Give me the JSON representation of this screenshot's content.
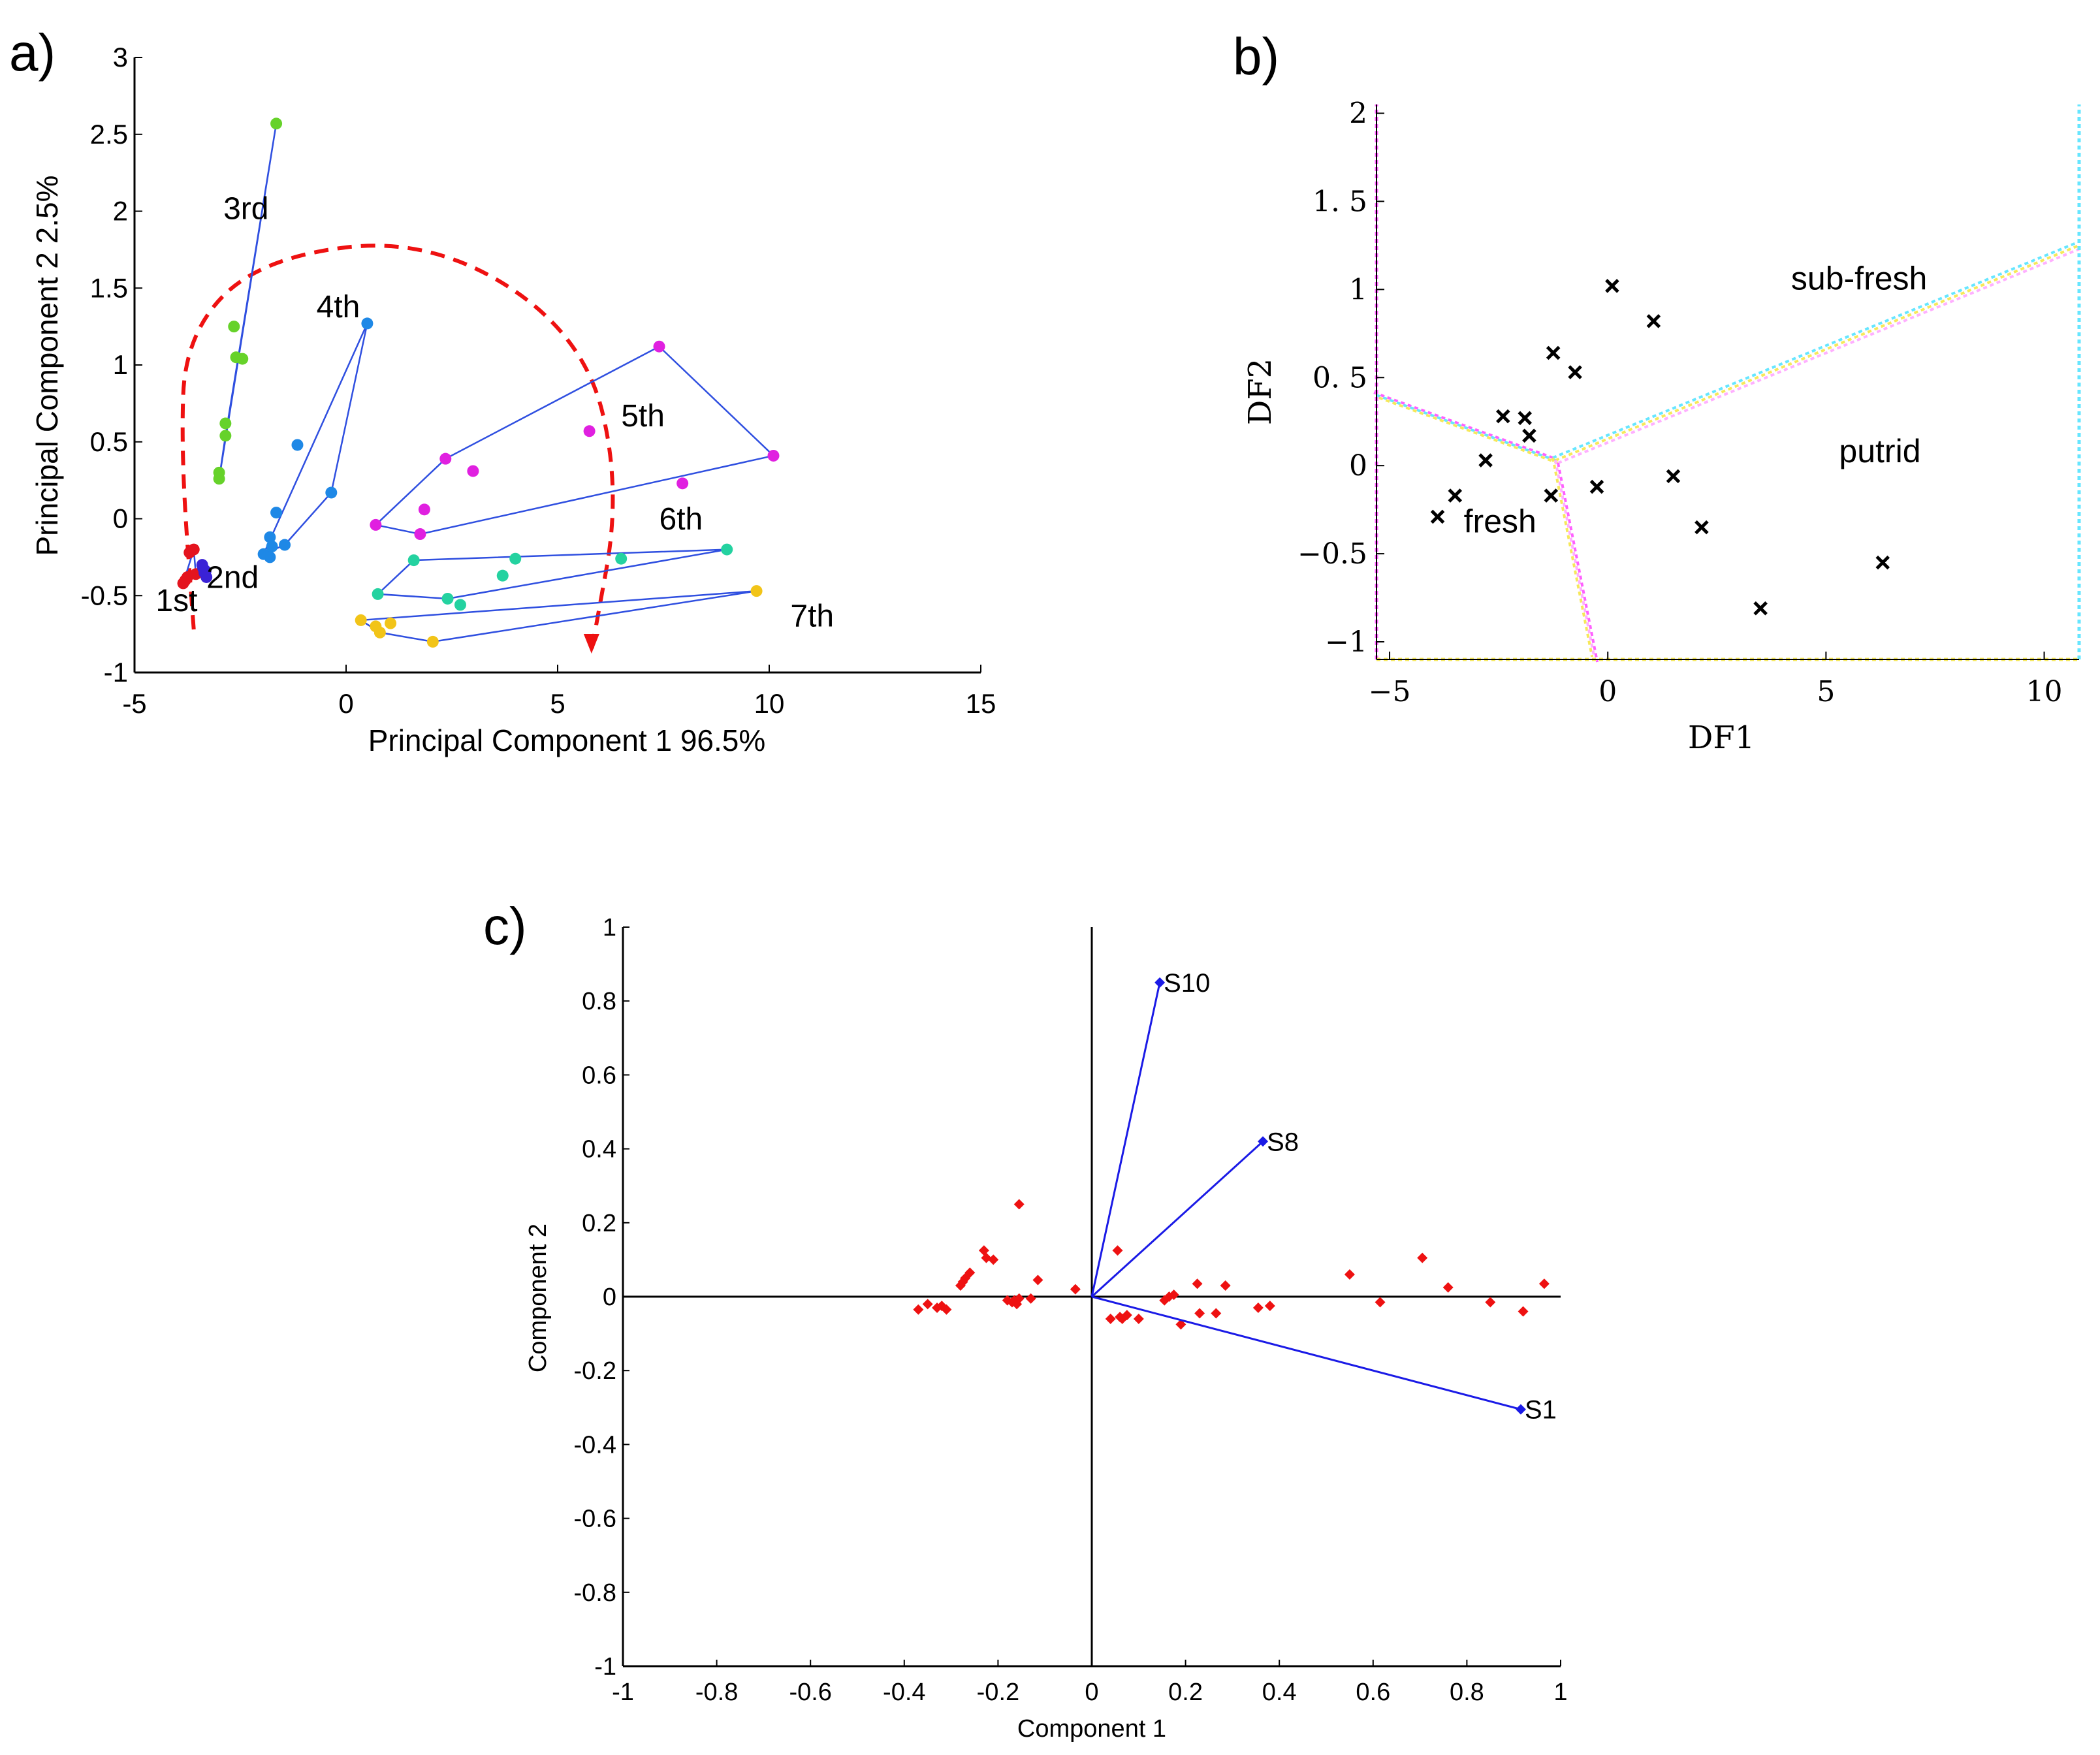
{
  "colors": {
    "axis": "#000000",
    "hull": "#2f4fe0",
    "trend_arrow": "#ee1111",
    "red": "#ee1111",
    "blue_vector": "#1a1ae6",
    "groups": {
      "1st": "#e4141e",
      "2nd": "#3a22d6",
      "3rd": "#66d22a",
      "4th": "#1e88e6",
      "5th": "#e020e0",
      "6th": "#24d2a0",
      "7th": "#f2c418"
    }
  },
  "chart_data": [
    {
      "panel": "a)",
      "type": "scatter",
      "xlabel": "Principal Component 1 96.5%",
      "ylabel": "Principal Component 2  2.5%",
      "xlim": [
        -5,
        15
      ],
      "ylim": [
        -1,
        3
      ],
      "xticks": [
        -5,
        0,
        5,
        10,
        15
      ],
      "yticks": [
        -1,
        -0.5,
        0,
        0.5,
        1,
        1.5,
        2,
        2.5,
        3
      ],
      "xtick_labels": [
        "-5",
        "0",
        "5",
        "10",
        "15"
      ],
      "ytick_labels": [
        "-1",
        "-0.5",
        "0",
        "0.5",
        "1",
        "1.5",
        "2",
        "2.5",
        "3"
      ],
      "trend": [
        [
          -3.6,
          -0.72
        ],
        [
          -3.9,
          0.4
        ],
        [
          -3.8,
          1.2
        ],
        [
          -2.0,
          1.7
        ],
        [
          2.0,
          1.83
        ],
        [
          5.6,
          1.2
        ],
        [
          6.5,
          0.2
        ],
        [
          5.8,
          -0.86
        ]
      ],
      "series": [
        {
          "name": "1st",
          "label_at": [
            -4.5,
            -0.6
          ],
          "points": [
            [
              -3.85,
              -0.42
            ],
            [
              -3.75,
              -0.38
            ],
            [
              -3.7,
              -0.22
            ],
            [
              -3.6,
              -0.2
            ],
            [
              -3.55,
              -0.36
            ],
            [
              -3.8,
              -0.4
            ]
          ],
          "hull": [
            [
              -3.85,
              -0.42
            ],
            [
              -3.6,
              -0.2
            ],
            [
              -3.55,
              -0.36
            ]
          ]
        },
        {
          "name": "2nd",
          "label_at": [
            -3.3,
            -0.45
          ],
          "points": [
            [
              -3.4,
              -0.3
            ],
            [
              -3.35,
              -0.35
            ],
            [
              -3.3,
              -0.38
            ],
            [
              -3.38,
              -0.32
            ],
            [
              -3.32,
              -0.34
            ]
          ],
          "hull": [
            [
              -3.4,
              -0.3
            ],
            [
              -3.3,
              -0.38
            ],
            [
              -3.35,
              -0.35
            ]
          ]
        },
        {
          "name": "3rd",
          "label_at": [
            -2.9,
            1.95
          ],
          "points": [
            [
              -1.65,
              2.57
            ],
            [
              -2.65,
              1.25
            ],
            [
              -2.6,
              1.05
            ],
            [
              -2.45,
              1.04
            ],
            [
              -2.85,
              0.62
            ],
            [
              -2.85,
              0.54
            ],
            [
              -3.0,
              0.3
            ],
            [
              -3.0,
              0.26
            ]
          ],
          "hull": [
            [
              -1.65,
              2.57
            ],
            [
              -3.0,
              0.26
            ],
            [
              -2.85,
              0.54
            ]
          ]
        },
        {
          "name": "4th",
          "label_at": [
            -0.7,
            1.31
          ],
          "points": [
            [
              0.5,
              1.27
            ],
            [
              -1.15,
              0.48
            ],
            [
              -0.35,
              0.17
            ],
            [
              -1.65,
              0.04
            ],
            [
              -1.8,
              -0.12
            ],
            [
              -1.75,
              -0.18
            ],
            [
              -1.45,
              -0.17
            ],
            [
              -1.95,
              -0.23
            ],
            [
              -1.8,
              -0.25
            ]
          ],
          "hull": [
            [
              0.5,
              1.27
            ],
            [
              -1.95,
              -0.23
            ],
            [
              -1.45,
              -0.17
            ],
            [
              -0.35,
              0.17
            ]
          ]
        },
        {
          "name": "5th",
          "label_at": [
            6.5,
            0.6
          ],
          "points": [
            [
              7.4,
              1.12
            ],
            [
              10.1,
              0.41
            ],
            [
              5.75,
              0.57
            ],
            [
              2.35,
              0.39
            ],
            [
              3.0,
              0.31
            ],
            [
              7.95,
              0.23
            ],
            [
              1.85,
              0.06
            ],
            [
              0.7,
              -0.04
            ],
            [
              1.75,
              -0.1
            ]
          ],
          "hull": [
            [
              7.4,
              1.12
            ],
            [
              10.1,
              0.41
            ],
            [
              1.75,
              -0.1
            ],
            [
              0.7,
              -0.04
            ],
            [
              2.35,
              0.39
            ]
          ]
        },
        {
          "name": "6th",
          "label_at": [
            7.4,
            -0.07
          ],
          "points": [
            [
              9.0,
              -0.2
            ],
            [
              6.5,
              -0.26
            ],
            [
              4.0,
              -0.26
            ],
            [
              1.6,
              -0.27
            ],
            [
              3.7,
              -0.37
            ],
            [
              0.75,
              -0.49
            ],
            [
              2.4,
              -0.52
            ],
            [
              2.7,
              -0.56
            ]
          ],
          "hull": [
            [
              9.0,
              -0.2
            ],
            [
              1.6,
              -0.27
            ],
            [
              0.75,
              -0.49
            ],
            [
              2.4,
              -0.52
            ]
          ]
        },
        {
          "name": "7th",
          "label_at": [
            10.5,
            -0.7
          ],
          "points": [
            [
              9.7,
              -0.47
            ],
            [
              0.35,
              -0.66
            ],
            [
              0.7,
              -0.7
            ],
            [
              1.05,
              -0.68
            ],
            [
              0.8,
              -0.74
            ],
            [
              2.05,
              -0.8
            ]
          ],
          "hull": [
            [
              9.7,
              -0.47
            ],
            [
              0.35,
              -0.66
            ],
            [
              0.8,
              -0.74
            ],
            [
              2.05,
              -0.8
            ]
          ]
        }
      ]
    },
    {
      "panel": "b)",
      "type": "scatter",
      "xlabel": "DF1",
      "ylabel": "DF2",
      "xlim": [
        -5.3,
        10.8
      ],
      "ylim": [
        -1.1,
        2.05
      ],
      "xticks": [
        -5,
        0,
        5,
        10
      ],
      "yticks": [
        -1,
        -0.5,
        0,
        0.5,
        1,
        1.5,
        2
      ],
      "xtick_labels": [
        "−5",
        "0",
        "5",
        "10"
      ],
      "ytick_labels": [
        "−1",
        "−0.5",
        "0",
        "0. 5",
        "1",
        "1. 5",
        "2"
      ],
      "class_labels": [
        {
          "text": "fresh",
          "x": -3.3,
          "y": -0.38
        },
        {
          "text": "sub-fresh",
          "x": 4.2,
          "y": 1.0
        },
        {
          "text": "putrid",
          "x": 5.3,
          "y": 0.02
        }
      ],
      "boundaries": [
        {
          "name": "fresh / sub-fresh",
          "points": [
            [
              -5.3,
              0.4
            ],
            [
              -1.2,
              0.03
            ]
          ]
        },
        {
          "name": "sub-fresh / putrid",
          "points": [
            [
              -1.2,
              0.03
            ],
            [
              10.8,
              1.25
            ]
          ]
        },
        {
          "name": "fresh / putrid",
          "points": [
            [
              -1.2,
              0.03
            ],
            [
              -0.3,
              -1.1
            ]
          ]
        }
      ],
      "points": [
        [
          0.1,
          1.02
        ],
        [
          1.05,
          0.82
        ],
        [
          -1.25,
          0.64
        ],
        [
          -0.75,
          0.53
        ],
        [
          -2.4,
          0.28
        ],
        [
          -1.9,
          0.27
        ],
        [
          -1.8,
          0.17
        ],
        [
          -2.8,
          0.03
        ],
        [
          -1.3,
          -0.17
        ],
        [
          -0.25,
          -0.12
        ],
        [
          1.5,
          -0.06
        ],
        [
          -3.5,
          -0.17
        ],
        [
          -3.9,
          -0.29
        ],
        [
          2.15,
          -0.35
        ],
        [
          6.3,
          -0.55
        ],
        [
          3.5,
          -0.81
        ]
      ]
    },
    {
      "panel": "c)",
      "type": "scatter",
      "xlabel": "Component 1",
      "ylabel": "Component 2",
      "xlim": [
        -1,
        1
      ],
      "ylim": [
        -1,
        1
      ],
      "xticks": [
        -1,
        -0.8,
        -0.6,
        -0.4,
        -0.2,
        0,
        0.2,
        0.4,
        0.6,
        0.8,
        1
      ],
      "yticks": [
        -1,
        -0.8,
        -0.6,
        -0.4,
        -0.2,
        0,
        0.2,
        0.4,
        0.6,
        0.8,
        1
      ],
      "xtick_labels": [
        "-1",
        "-0.8",
        "-0.6",
        "-0.4",
        "-0.2",
        "0",
        "0.2",
        "0.4",
        "0.6",
        "0.8",
        "1"
      ],
      "ytick_labels": [
        "-1",
        "-0.8",
        "-0.6",
        "-0.4",
        "-0.2",
        "0",
        "0.2",
        "0.4",
        "0.6",
        "0.8",
        "1"
      ],
      "vectors": [
        {
          "name": "S10",
          "x": 0.145,
          "y": 0.85
        },
        {
          "name": "S8",
          "x": 0.365,
          "y": 0.42
        },
        {
          "name": "S1",
          "x": 0.915,
          "y": -0.305
        }
      ],
      "points": [
        [
          -0.37,
          -0.035
        ],
        [
          -0.35,
          -0.02
        ],
        [
          -0.33,
          -0.03
        ],
        [
          -0.32,
          -0.025
        ],
        [
          -0.31,
          -0.035
        ],
        [
          -0.275,
          0.04
        ],
        [
          -0.27,
          0.05
        ],
        [
          -0.26,
          0.065
        ],
        [
          -0.28,
          0.03
        ],
        [
          -0.23,
          0.125
        ],
        [
          -0.225,
          0.105
        ],
        [
          -0.21,
          0.1
        ],
        [
          -0.155,
          0.25
        ],
        [
          -0.18,
          -0.01
        ],
        [
          -0.17,
          -0.015
        ],
        [
          -0.165,
          -0.01
        ],
        [
          -0.16,
          -0.02
        ],
        [
          -0.155,
          -0.005
        ],
        [
          -0.13,
          -0.005
        ],
        [
          -0.115,
          0.045
        ],
        [
          -0.035,
          0.02
        ],
        [
          0.055,
          0.125
        ],
        [
          0.04,
          -0.06
        ],
        [
          0.06,
          -0.055
        ],
        [
          0.065,
          -0.06
        ],
        [
          0.075,
          -0.05
        ],
        [
          0.1,
          -0.06
        ],
        [
          0.155,
          -0.01
        ],
        [
          0.165,
          0.0
        ],
        [
          0.175,
          0.005
        ],
        [
          0.19,
          -0.075
        ],
        [
          0.225,
          0.035
        ],
        [
          0.23,
          -0.045
        ],
        [
          0.265,
          -0.045
        ],
        [
          0.285,
          0.03
        ],
        [
          0.355,
          -0.03
        ],
        [
          0.38,
          -0.025
        ],
        [
          0.55,
          0.06
        ],
        [
          0.615,
          -0.015
        ],
        [
          0.705,
          0.105
        ],
        [
          0.76,
          0.025
        ],
        [
          0.85,
          -0.015
        ],
        [
          0.92,
          -0.04
        ],
        [
          0.965,
          0.035
        ]
      ]
    }
  ]
}
